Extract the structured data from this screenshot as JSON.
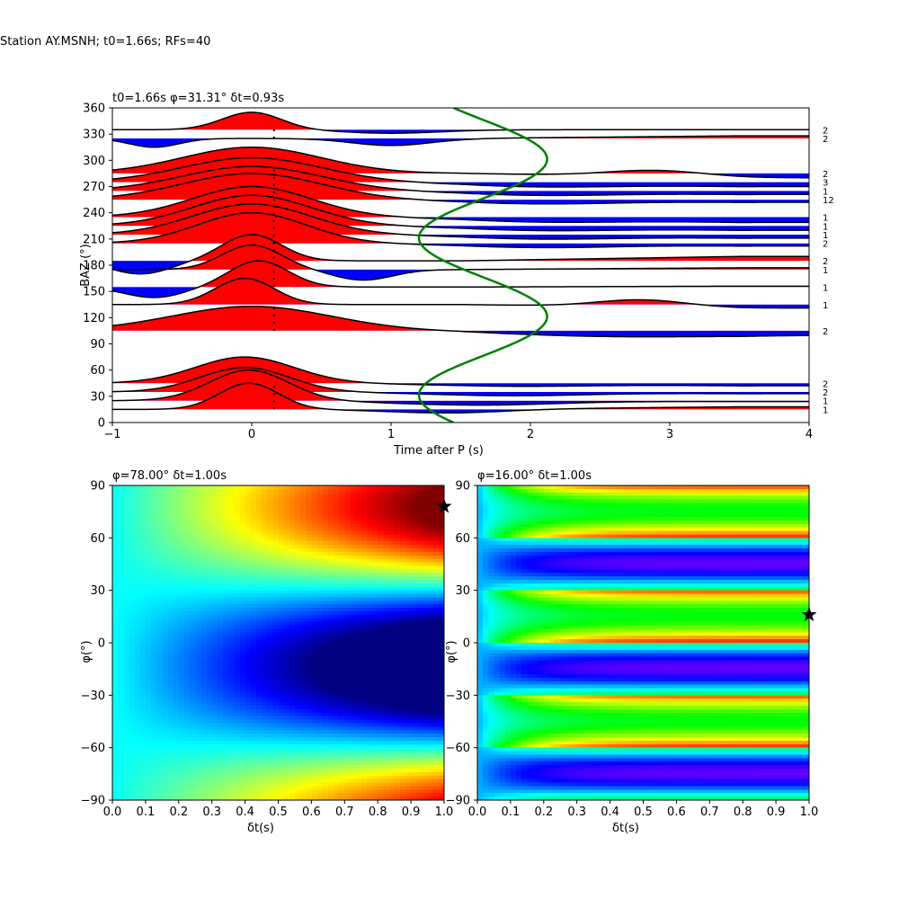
{
  "figure_title": "Station AY.MSNH; t0=1.66s; RFs=40",
  "chart_data": [
    {
      "type": "line",
      "title": "t0=1.66s φ=31.31° δt=0.93s",
      "xlabel": "Time after P (s)",
      "ylabel": "BAZ (°)",
      "xlim": [
        -1,
        4
      ],
      "ylim": [
        0,
        360
      ],
      "xticks": [
        -1,
        0,
        1,
        2,
        3,
        4
      ],
      "yticks": [
        0,
        30,
        60,
        90,
        120,
        150,
        180,
        210,
        240,
        270,
        300,
        330,
        360
      ],
      "grid": false,
      "fill_positive_color": "#ff0000",
      "fill_negative_color": "#0000ff",
      "model_curve_color": "#008000",
      "marker_time": 0.16,
      "traces": [
        {
          "baz": 15,
          "count": "1",
          "main_amp": 30,
          "main_t": -0.02,
          "main_w": 0.3,
          "sec_amp": -4,
          "sec_t": 1.4,
          "sec_w": 0.6,
          "tail": 3
        },
        {
          "baz": 25,
          "count": "1",
          "main_amp": 35,
          "main_t": -0.02,
          "main_w": 0.4,
          "sec_amp": -5,
          "sec_t": 1.6,
          "sec_w": 0.8,
          "tail": -1
        },
        {
          "baz": 35,
          "count": "2",
          "main_amp": 28,
          "main_t": -0.05,
          "main_w": 0.45,
          "sec_amp": -4,
          "sec_t": 1.8,
          "sec_w": 0.8,
          "tail": -2
        },
        {
          "baz": 45,
          "count": "2",
          "main_amp": 30,
          "main_t": -0.05,
          "main_w": 0.5,
          "sec_amp": -3,
          "sec_t": 1.8,
          "sec_w": 0.8,
          "tail": -3
        },
        {
          "baz": 105,
          "count": "2",
          "main_amp": 28,
          "main_t": 0.0,
          "main_w": 0.8,
          "sec_amp": -4,
          "sec_t": 2.5,
          "sec_w": 1.0,
          "tail": -5
        },
        {
          "baz": 135,
          "count": "1",
          "main_amp": 30,
          "main_t": -0.05,
          "main_w": 0.3,
          "sec_amp": 8,
          "sec_t": 2.8,
          "sec_w": 0.45,
          "tail": -4
        },
        {
          "baz": 155,
          "count": "1",
          "main_amp": 30,
          "main_t": 0.05,
          "main_w": 0.3,
          "sec_amp": -12,
          "sec_t": -0.7,
          "sec_w": 0.3,
          "tail": 1
        },
        {
          "baz": 175,
          "count": "1",
          "main_amp": 28,
          "main_t": 0.0,
          "main_w": 0.3,
          "sec_amp": -12,
          "sec_t": 0.8,
          "sec_w": 0.3,
          "tail": 2
        },
        {
          "baz": 185,
          "count": "2",
          "main_amp": 30,
          "main_t": 0.0,
          "main_w": 0.3,
          "sec_amp": -15,
          "sec_t": -0.8,
          "sec_w": 0.3,
          "tail": 5
        },
        {
          "baz": 205,
          "count": "2",
          "main_amp": 35,
          "main_t": 0.0,
          "main_w": 0.55,
          "sec_amp": -4,
          "sec_t": 2.0,
          "sec_w": 0.8,
          "tail": -3
        },
        {
          "baz": 215,
          "count": "1",
          "main_amp": 35,
          "main_t": 0.0,
          "main_w": 0.6,
          "sec_amp": -4,
          "sec_t": 2.0,
          "sec_w": 0.8,
          "tail": -4
        },
        {
          "baz": 225,
          "count": "1",
          "main_amp": 35,
          "main_t": 0.0,
          "main_w": 0.6,
          "sec_amp": -4,
          "sec_t": 2.0,
          "sec_w": 0.8,
          "tail": -5
        },
        {
          "baz": 235,
          "count": "1",
          "main_amp": 35,
          "main_t": 0.0,
          "main_w": 0.6,
          "sec_amp": -4,
          "sec_t": 2.0,
          "sec_w": 0.8,
          "tail": -6
        },
        {
          "baz": 255,
          "count": "12",
          "main_amp": 30,
          "main_t": 0.0,
          "main_w": 0.7,
          "sec_amp": -4,
          "sec_t": 2.0,
          "sec_w": 0.8,
          "tail": -3
        },
        {
          "baz": 265,
          "count": "1",
          "main_amp": 28,
          "main_t": 0.0,
          "main_w": 0.7,
          "sec_amp": -4,
          "sec_t": 2.0,
          "sec_w": 0.8,
          "tail": -4
        },
        {
          "baz": 275,
          "count": "3",
          "main_amp": 28,
          "main_t": 0.0,
          "main_w": 0.7,
          "sec_amp": -4,
          "sec_t": 2.0,
          "sec_w": 0.8,
          "tail": -5
        },
        {
          "baz": 285,
          "count": "2",
          "main_amp": 30,
          "main_t": 0.0,
          "main_w": 0.7,
          "sec_amp": 7,
          "sec_t": 2.9,
          "sec_w": 0.5,
          "tail": -5
        },
        {
          "baz": 325,
          "count": "2",
          "main_amp": -10,
          "main_t": -0.7,
          "main_w": 0.25,
          "sec_amp": -8,
          "sec_t": 1.0,
          "sec_w": 0.4,
          "tail": 3
        },
        {
          "baz": 335,
          "count": "2",
          "main_amp": 20,
          "main_t": 0.0,
          "main_w": 0.3,
          "sec_amp": -4,
          "sec_t": 1.0,
          "sec_w": 0.5,
          "tail": 0
        }
      ]
    },
    {
      "type": "heatmap",
      "title": "φ=78.00° δt=1.00s",
      "xlabel": "δt(s)",
      "ylabel": "φ(°)",
      "xlim": [
        0,
        1
      ],
      "ylim": [
        -90,
        90
      ],
      "xticks": [
        0.0,
        0.1,
        0.2,
        0.3,
        0.4,
        0.5,
        0.6,
        0.7,
        0.8,
        0.9,
        1.0
      ],
      "yticks": [
        -90,
        -60,
        -30,
        0,
        30,
        60,
        90
      ],
      "colormap": "jet",
      "best": {
        "dt": 1.0,
        "phi": 78
      }
    },
    {
      "type": "heatmap",
      "title": "φ=16.00° δt=1.00s",
      "xlabel": "δt(s)",
      "ylabel": "φ(°)",
      "xlim": [
        0,
        1
      ],
      "ylim": [
        -90,
        90
      ],
      "xticks": [
        0.0,
        0.1,
        0.2,
        0.3,
        0.4,
        0.5,
        0.6,
        0.7,
        0.8,
        0.9,
        1.0
      ],
      "yticks": [
        -90,
        -60,
        -30,
        0,
        30,
        60,
        90
      ],
      "colormap": "hsv",
      "best": {
        "dt": 1.0,
        "phi": 16
      }
    }
  ]
}
